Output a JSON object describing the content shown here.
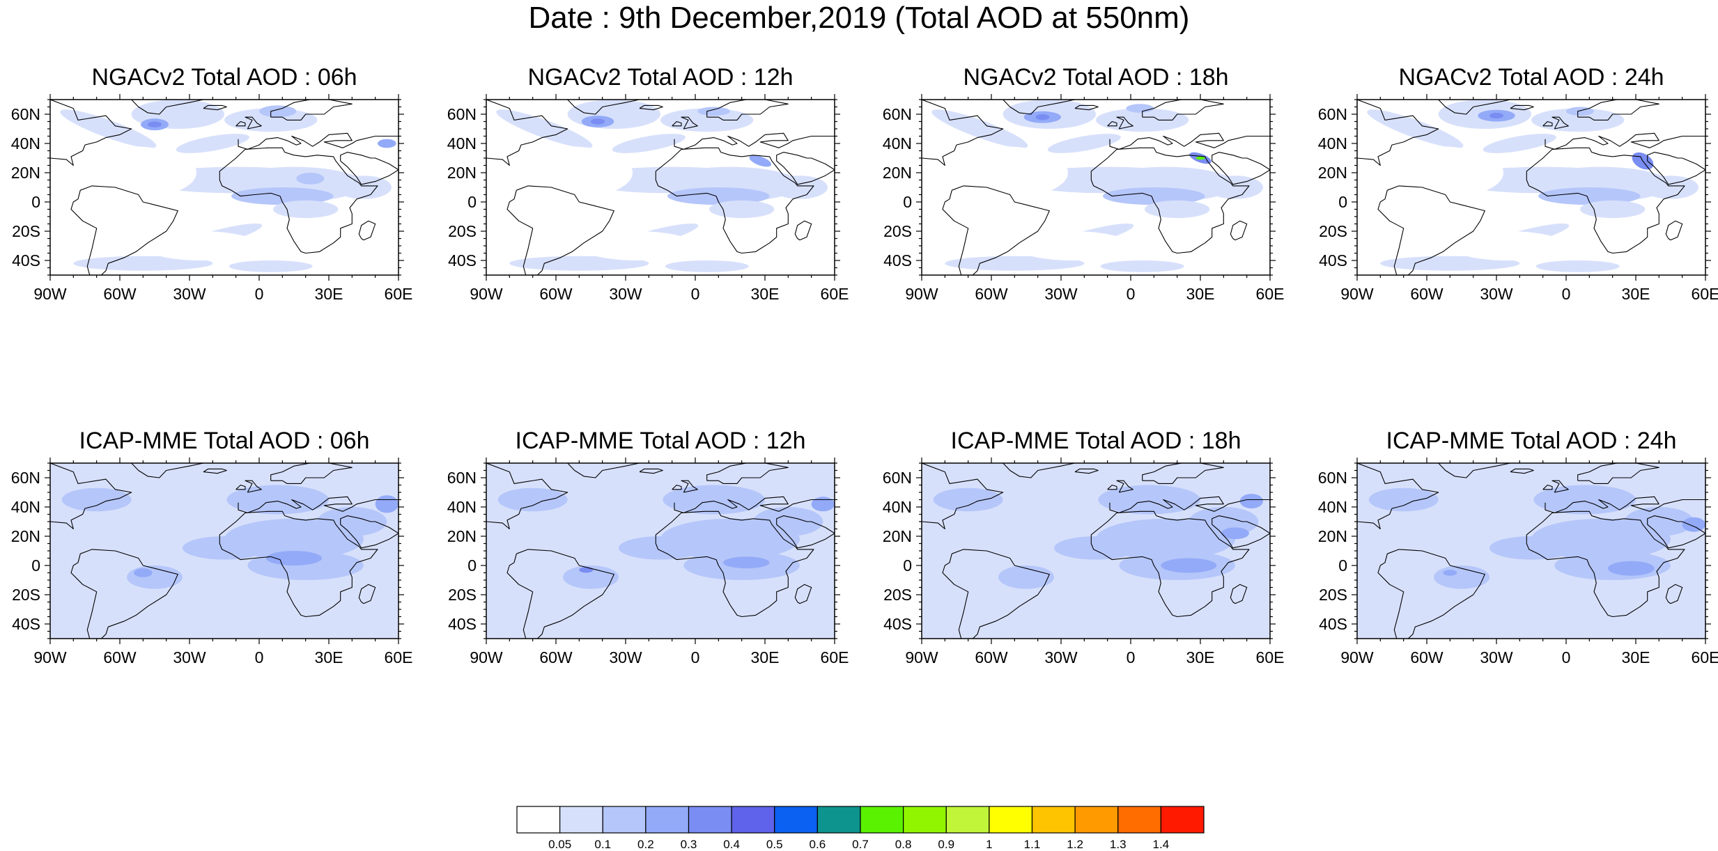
{
  "title": "Date : 9th December,2019 (Total AOD at 550nm)",
  "rows": [
    {
      "model": "NGACv2",
      "panels": [
        {
          "title": "NGACv2 Total AOD : 06h",
          "forecast_hour": "06h"
        },
        {
          "title": "NGACv2 Total AOD : 12h",
          "forecast_hour": "12h"
        },
        {
          "title": "NGACv2 Total AOD : 18h",
          "forecast_hour": "18h"
        },
        {
          "title": "NGACv2 Total AOD : 24h",
          "forecast_hour": "24h"
        }
      ]
    },
    {
      "model": "ICAP-MME",
      "panels": [
        {
          "title": "ICAP-MME Total AOD : 06h",
          "forecast_hour": "06h"
        },
        {
          "title": "ICAP-MME Total AOD : 12h",
          "forecast_hour": "12h"
        },
        {
          "title": "ICAP-MME Total AOD : 18h",
          "forecast_hour": "18h"
        },
        {
          "title": "ICAP-MME Total AOD : 24h",
          "forecast_hour": "24h"
        }
      ]
    }
  ],
  "map": {
    "lon_range": [
      -90,
      60
    ],
    "lat_range": [
      -50,
      70
    ],
    "lat_labels": [
      {
        "value": 60,
        "label": "60N"
      },
      {
        "value": 40,
        "label": "40N"
      },
      {
        "value": 20,
        "label": "20N"
      },
      {
        "value": 0,
        "label": "0"
      },
      {
        "value": -20,
        "label": "20S"
      },
      {
        "value": -40,
        "label": "40S"
      }
    ],
    "lon_labels": [
      {
        "value": -90,
        "label": "90W"
      },
      {
        "value": -60,
        "label": "60W"
      },
      {
        "value": -30,
        "label": "30W"
      },
      {
        "value": 0,
        "label": "0"
      },
      {
        "value": 30,
        "label": "30E"
      },
      {
        "value": 60,
        "label": "60E"
      }
    ]
  },
  "colorbar": {
    "labels": [
      "0.05",
      "0.1",
      "0.2",
      "0.3",
      "0.4",
      "0.5",
      "0.6",
      "0.7",
      "0.8",
      "0.9",
      "1",
      "1.1",
      "1.2",
      "1.3",
      "1.4"
    ],
    "colors": [
      "#ffffff",
      "#d7e0fb",
      "#b5c6fa",
      "#93aaf8",
      "#7a8df2",
      "#5f62ea",
      "#0b61f2",
      "#0e948e",
      "#5af200",
      "#92f500",
      "#c0f53a",
      "#ffff00",
      "#ffc400",
      "#ff9a00",
      "#ff6c00",
      "#ff1a00"
    ]
  }
}
